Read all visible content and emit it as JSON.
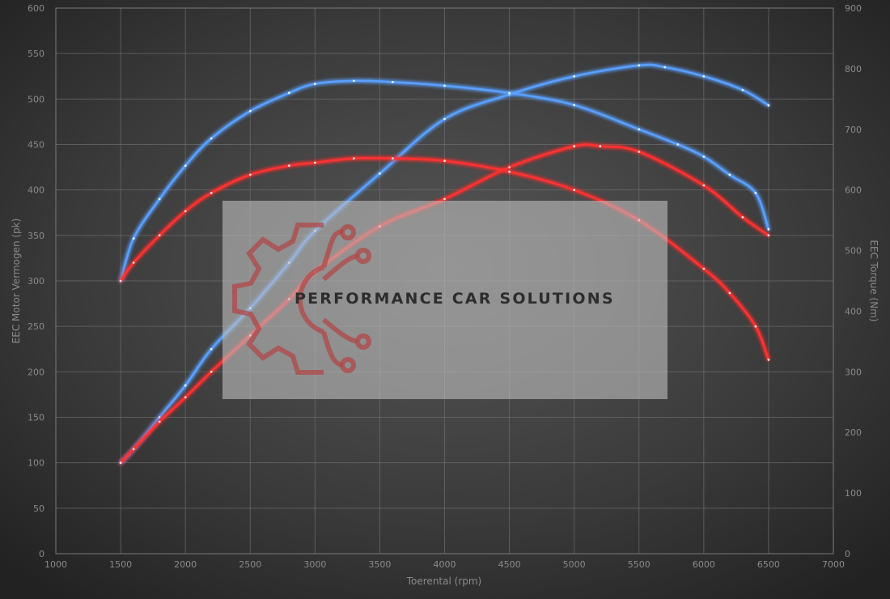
{
  "chart_data": {
    "type": "line",
    "xlabel": "Toerental (rpm)",
    "ylabel_left": "EEC Motor Vermogen (pk)",
    "ylabel_right": "EEC Torque (Nm)",
    "xlim": [
      1000,
      7000
    ],
    "x_ticks": [
      1000,
      1500,
      2000,
      2500,
      3000,
      3500,
      4000,
      4500,
      5000,
      5500,
      6000,
      6500,
      7000
    ],
    "ylim_left": [
      0,
      600
    ],
    "y_ticks_left": [
      0,
      50,
      100,
      150,
      200,
      250,
      300,
      350,
      400,
      450,
      500,
      550,
      600
    ],
    "ylim_right": [
      0,
      900
    ],
    "y_ticks_right": [
      0,
      100,
      200,
      300,
      400,
      500,
      600,
      700,
      800,
      900
    ],
    "grid": true,
    "series": [
      {
        "axis": "left",
        "color": "#5aa0ff",
        "x": [
          1500,
          1600,
          1800,
          2000,
          2200,
          2500,
          2800,
          3000,
          3500,
          4000,
          4500,
          5000,
          5500,
          5700,
          6000,
          6300,
          6500
        ],
        "y": [
          100,
          115,
          150,
          185,
          225,
          270,
          320,
          355,
          418,
          478,
          505,
          525,
          537,
          535,
          525,
          510,
          493
        ]
      },
      {
        "axis": "left",
        "color": "#ff3030",
        "x": [
          1500,
          1600,
          1800,
          2000,
          2200,
          2500,
          2800,
          3000,
          3500,
          4000,
          4500,
          5000,
          5200,
          5500,
          6000,
          6300,
          6500
        ],
        "y": [
          100,
          115,
          145,
          172,
          200,
          240,
          280,
          310,
          360,
          390,
          425,
          448,
          448,
          442,
          405,
          370,
          350
        ]
      },
      {
        "axis": "right",
        "color": "#5aa0ff",
        "x": [
          1500,
          1600,
          1800,
          2000,
          2200,
          2500,
          2800,
          3000,
          3300,
          3600,
          4000,
          4500,
          5000,
          5500,
          5800,
          6000,
          6200,
          6400,
          6500
        ],
        "y": [
          450,
          520,
          585,
          640,
          685,
          730,
          760,
          775,
          780,
          778,
          772,
          760,
          740,
          700,
          675,
          655,
          625,
          595,
          535
        ]
      },
      {
        "axis": "right",
        "color": "#ff3030",
        "x": [
          1500,
          1600,
          1800,
          2000,
          2200,
          2500,
          2800,
          3000,
          3300,
          3600,
          4000,
          4500,
          5000,
          5500,
          6000,
          6200,
          6400,
          6500
        ],
        "y": [
          450,
          480,
          525,
          565,
          595,
          625,
          640,
          645,
          652,
          652,
          648,
          630,
          600,
          550,
          470,
          430,
          375,
          320
        ]
      }
    ]
  },
  "watermark": {
    "text": "PERFORMANCE CAR SOLUTIONS"
  }
}
